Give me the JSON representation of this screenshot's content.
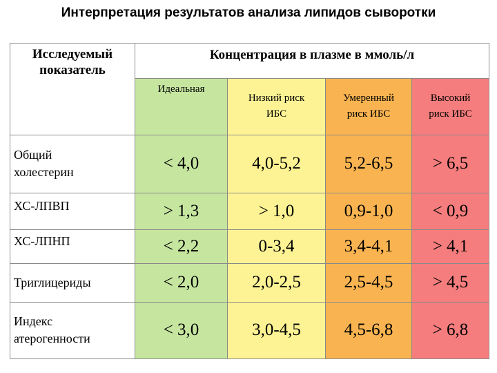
{
  "title": "Интерпретация результатов анализа липидов сыворотки",
  "header": {
    "parameter_line1": "Исследуемый",
    "parameter_line2": "показатель",
    "concentration": "Концентрация в плазме в ммоль/л",
    "columns": [
      {
        "line1": "Идеальная",
        "line2": ""
      },
      {
        "line1": "Низкий риск",
        "line2": "ИБС"
      },
      {
        "line1": "Умеренный",
        "line2": "риск ИБС"
      },
      {
        "line1": "Высокий",
        "line2": "риск ИБС"
      }
    ]
  },
  "column_colors": [
    "#c6e6a0",
    "#fdf394",
    "#f9b451",
    "#f57d7d"
  ],
  "rows": [
    {
      "label1": "Общий",
      "label2": "холестерин",
      "values": [
        "< 4,0",
        "4,0-5,2",
        "5,2-6,5",
        "> 6,5"
      ]
    },
    {
      "label1": "ХС-ЛПВП",
      "label2": "",
      "values": [
        "> 1,3",
        "> 1,0",
        "0,9-1,0",
        "< 0,9"
      ]
    },
    {
      "label1": "ХС-ЛПНП",
      "label2": "",
      "values": [
        "< 2,2",
        "0-3,4",
        "3,4-4,1",
        "> 4,1"
      ]
    },
    {
      "label1": "Триглицериды",
      "label2": "",
      "values": [
        "< 2,0",
        "2,0-2,5",
        "2,5-4,5",
        "> 4,5"
      ]
    },
    {
      "label1": "Индекс",
      "label2": "атерогенности",
      "values": [
        "< 3,0",
        "3,0-4,5",
        "4,5-6,8",
        "> 6,8"
      ]
    }
  ]
}
